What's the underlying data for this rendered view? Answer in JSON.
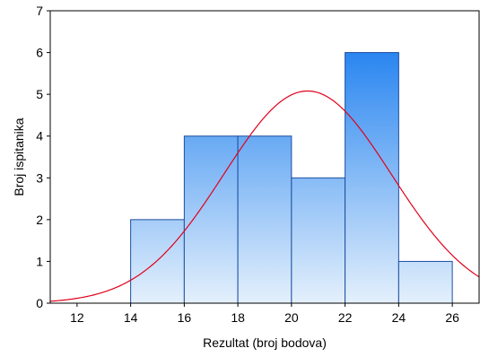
{
  "chart_data": {
    "type": "bar",
    "title": "",
    "xlabel": "Rezultat (broj bodova)",
    "ylabel": "Broj ispitanika",
    "xlim": [
      11,
      27
    ],
    "ylim": [
      0,
      7
    ],
    "x_ticks": [
      12,
      14,
      16,
      18,
      20,
      22,
      24,
      26
    ],
    "y_ticks": [
      0,
      1,
      2,
      3,
      4,
      5,
      6,
      7
    ],
    "bins": [
      {
        "start": 14,
        "end": 16,
        "value": 2
      },
      {
        "start": 16,
        "end": 18,
        "value": 4
      },
      {
        "start": 18,
        "end": 20,
        "value": 4
      },
      {
        "start": 20,
        "end": 22,
        "value": 3
      },
      {
        "start": 22,
        "end": 24,
        "value": 6
      },
      {
        "start": 24,
        "end": 26,
        "value": 1
      }
    ],
    "normal_curve": {
      "mean": 20.6,
      "sd": 3.13,
      "peak": 5.08
    },
    "colors": {
      "bar_top": "#2a86f0",
      "bar_bottom": "#e4f0fc",
      "bar_stroke": "#1c4fa0",
      "curve": "#e0001b"
    },
    "grid": false
  }
}
